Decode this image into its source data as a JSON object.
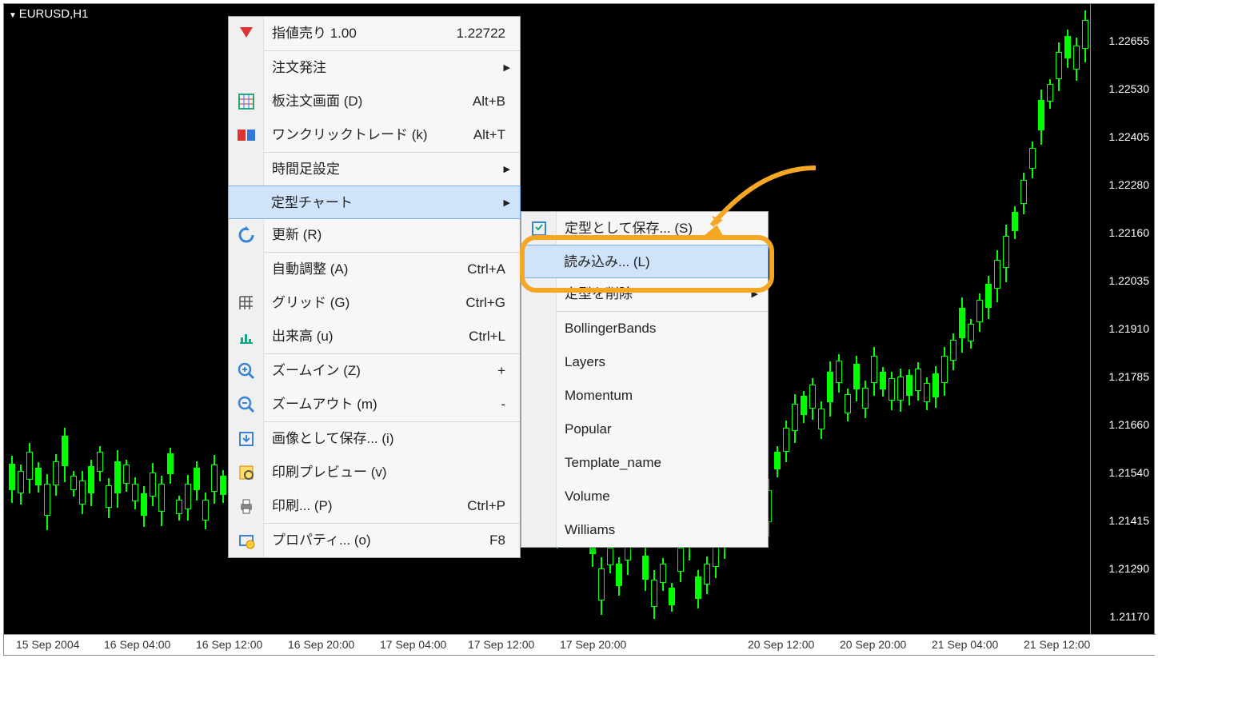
{
  "chart": {
    "title": "EURUSD,H1",
    "bg": "#000000",
    "candle_color": "#00ff00",
    "price_min": 1.2117,
    "price_max": 1.22655,
    "price_ticks": [
      "1.22655",
      "1.22530",
      "1.22405",
      "1.22280",
      "1.22160",
      "1.22035",
      "1.21910",
      "1.21785",
      "1.21660",
      "1.21540",
      "1.21415",
      "1.21290",
      "1.21170"
    ],
    "time_ticks": [
      "15 Sep 2004",
      "16 Sep 04:00",
      "16 Sep 12:00",
      "16 Sep 20:00",
      "17 Sep 04:00",
      "17 Sep 12:00",
      "17 Sep 20:00",
      "20 Sep 12:00",
      "20 Sep 20:00",
      "21 Sep 04:00",
      "21 Sep 12:00"
    ],
    "time_x": [
      15,
      125,
      240,
      355,
      470,
      580,
      695,
      930,
      1045,
      1160,
      1275
    ]
  },
  "menu1": [
    {
      "icon": "sell",
      "label": "指値売り 1.00",
      "shortcut": "1.22722"
    },
    "---",
    {
      "icon": "",
      "label": "注文発注",
      "arrow": true
    },
    {
      "icon": "grid",
      "label": "板注文画面 (D)",
      "shortcut": "Alt+B"
    },
    {
      "icon": "oneclick",
      "label": "ワンクリックトレード (k)",
      "shortcut": "Alt+T"
    },
    "---",
    {
      "icon": "",
      "label": "時間足設定",
      "arrow": true
    },
    {
      "icon": "",
      "label": "定型チャート",
      "arrow": true,
      "hl": true
    },
    {
      "icon": "refresh",
      "label": "更新 (R)"
    },
    "---",
    {
      "icon": "",
      "label": "自動調整 (A)",
      "shortcut": "Ctrl+A"
    },
    {
      "icon": "gridlines",
      "label": "グリッド (G)",
      "shortcut": "Ctrl+G"
    },
    {
      "icon": "volume",
      "label": "出来高 (u)",
      "shortcut": "Ctrl+L"
    },
    "---",
    {
      "icon": "zoomin",
      "label": "ズームイン (Z)",
      "shortcut": "+"
    },
    {
      "icon": "zoomout",
      "label": "ズームアウト (m)",
      "shortcut": "-"
    },
    "---",
    {
      "icon": "saveimg",
      "label": "画像として保存... (i)"
    },
    {
      "icon": "preview",
      "label": "印刷プレビュー (v)"
    },
    {
      "icon": "print",
      "label": "印刷... (P)",
      "shortcut": "Ctrl+P"
    },
    "---",
    {
      "icon": "props",
      "label": "プロパティ... (o)",
      "shortcut": "F8"
    }
  ],
  "menu2": [
    {
      "icon": "savetpl",
      "label": "定型として保存... (S)"
    },
    {
      "icon": "",
      "label": "読み込み... (L)",
      "hl": true
    },
    {
      "icon": "",
      "label": "定型を削除",
      "arrow": true
    },
    "---",
    {
      "icon": "",
      "label": "BollingerBands"
    },
    {
      "icon": "",
      "label": "Layers"
    },
    {
      "icon": "",
      "label": "Momentum"
    },
    {
      "icon": "",
      "label": "Popular"
    },
    {
      "icon": "",
      "label": "Template_name"
    },
    {
      "icon": "",
      "label": "Volume"
    },
    {
      "icon": "",
      "label": "Williams"
    }
  ],
  "anno": {
    "color": "#f5a623"
  },
  "candles": [
    [
      0,
      575,
      33,
      -10,
      16
    ],
    [
      1,
      584,
      28,
      -8,
      14
    ],
    [
      2,
      560,
      35,
      -11,
      17
    ],
    [
      3,
      580,
      22,
      -7,
      9
    ],
    [
      4,
      600,
      40,
      -12,
      18
    ],
    [
      5,
      572,
      30,
      -9,
      13
    ],
    [
      6,
      540,
      38,
      -10,
      20
    ],
    [
      7,
      590,
      18,
      -6,
      8
    ],
    [
      8,
      596,
      30,
      -12,
      12
    ],
    [
      9,
      578,
      34,
      -8,
      16
    ],
    [
      10,
      560,
      25,
      -7,
      12
    ],
    [
      11,
      602,
      28,
      -9,
      13
    ],
    [
      12,
      572,
      40,
      -14,
      18
    ],
    [
      13,
      576,
      24,
      -6,
      10
    ],
    [
      14,
      600,
      22,
      -8,
      10
    ],
    [
      15,
      612,
      28,
      -9,
      14
    ],
    [
      16,
      586,
      30,
      -12,
      12
    ],
    [
      17,
      600,
      35,
      -10,
      18
    ],
    [
      18,
      562,
      26,
      -7,
      12
    ],
    [
      19,
      620,
      18,
      -5,
      8
    ],
    [
      20,
      600,
      32,
      -11,
      14
    ],
    [
      21,
      580,
      28,
      -8,
      13
    ],
    [
      22,
      620,
      26,
      -9,
      11
    ],
    [
      23,
      576,
      34,
      -12,
      15
    ],
    [
      24,
      590,
      24,
      -7,
      10
    ],
    [
      62,
      640,
      28,
      -9,
      13
    ],
    [
      63,
      606,
      34,
      -11,
      16
    ],
    [
      64,
      586,
      30,
      -8,
      14
    ],
    [
      65,
      616,
      26,
      -9,
      12
    ],
    [
      66,
      656,
      32,
      -10,
      16
    ],
    [
      67,
      706,
      40,
      -14,
      18
    ],
    [
      68,
      680,
      22,
      -6,
      10
    ],
    [
      69,
      700,
      28,
      -8,
      12
    ],
    [
      70,
      660,
      36,
      -11,
      18
    ],
    [
      71,
      640,
      26,
      -7,
      12
    ],
    [
      72,
      690,
      30,
      -10,
      14
    ],
    [
      73,
      720,
      34,
      -12,
      15
    ],
    [
      74,
      700,
      24,
      -7,
      10
    ],
    [
      75,
      730,
      22,
      -6,
      8
    ],
    [
      76,
      680,
      30,
      -9,
      13
    ],
    [
      77,
      640,
      38,
      -13,
      18
    ],
    [
      78,
      716,
      28,
      -8,
      12
    ],
    [
      79,
      700,
      26,
      -9,
      12
    ],
    [
      80,
      674,
      30,
      -10,
      14
    ],
    [
      81,
      640,
      36,
      -11,
      18
    ],
    [
      82,
      608,
      22,
      -6,
      9
    ],
    [
      83,
      570,
      28,
      -9,
      12
    ],
    [
      84,
      608,
      34,
      -10,
      16
    ],
    [
      85,
      640,
      26,
      -8,
      12
    ],
    [
      86,
      608,
      40,
      -14,
      18
    ],
    [
      87,
      560,
      22,
      -7,
      10
    ],
    [
      88,
      530,
      30,
      -9,
      13
    ],
    [
      89,
      500,
      34,
      -12,
      15
    ],
    [
      90,
      490,
      24,
      -6,
      10
    ],
    [
      91,
      476,
      30,
      -8,
      14
    ],
    [
      92,
      506,
      26,
      -9,
      12
    ],
    [
      93,
      460,
      38,
      -13,
      18
    ],
    [
      94,
      446,
      28,
      -8,
      12
    ],
    [
      95,
      488,
      24,
      -7,
      10
    ],
    [
      96,
      450,
      32,
      -10,
      15
    ],
    [
      97,
      480,
      26,
      -9,
      12
    ],
    [
      98,
      440,
      34,
      -11,
      16
    ],
    [
      99,
      460,
      22,
      -6,
      9
    ],
    [
      100,
      468,
      28,
      -8,
      12
    ],
    [
      101,
      466,
      30,
      -10,
      14
    ],
    [
      102,
      464,
      26,
      -7,
      12
    ],
    [
      103,
      456,
      28,
      -8,
      12
    ],
    [
      104,
      474,
      24,
      -7,
      10
    ],
    [
      105,
      462,
      30,
      -9,
      13
    ],
    [
      106,
      440,
      34,
      -11,
      16
    ],
    [
      107,
      420,
      26,
      -8,
      12
    ],
    [
      108,
      380,
      38,
      -13,
      18
    ],
    [
      109,
      400,
      22,
      -6,
      9
    ],
    [
      110,
      370,
      28,
      -8,
      12
    ],
    [
      111,
      350,
      30,
      -10,
      14
    ],
    [
      112,
      320,
      36,
      -12,
      17
    ],
    [
      113,
      290,
      40,
      -14,
      18
    ],
    [
      114,
      260,
      24,
      -7,
      10
    ],
    [
      115,
      220,
      30,
      -9,
      13
    ],
    [
      116,
      180,
      26,
      -8,
      12
    ],
    [
      117,
      120,
      38,
      -13,
      18
    ],
    [
      118,
      100,
      22,
      -6,
      9
    ],
    [
      119,
      60,
      34,
      -12,
      15
    ],
    [
      120,
      40,
      28,
      -8,
      12
    ],
    [
      121,
      52,
      30,
      -10,
      14
    ],
    [
      122,
      20,
      36,
      -12,
      17
    ]
  ]
}
